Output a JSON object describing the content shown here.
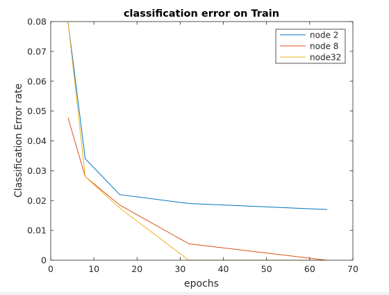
{
  "chart_data": {
    "type": "line",
    "title": "classification error on Train",
    "xlabel": "epochs",
    "ylabel": "Classification Error rate",
    "xlim": [
      0,
      70
    ],
    "ylim": [
      0,
      0.08
    ],
    "x_ticks": [
      "0",
      "10",
      "20",
      "30",
      "40",
      "50",
      "60",
      "70"
    ],
    "y_ticks": [
      "0",
      "0.01",
      "0.02",
      "0.03",
      "0.04",
      "0.05",
      "0.06",
      "0.07",
      "0.08"
    ],
    "grid": false,
    "legend_position": "top-right",
    "series": [
      {
        "name": "node 2",
        "color": "#0072bd",
        "x": [
          4,
          8,
          16,
          32,
          64
        ],
        "y": [
          0.08,
          0.034,
          0.022,
          0.019,
          0.017
        ]
      },
      {
        "name": "node 8",
        "color": "#d95319",
        "x": [
          4,
          8,
          16,
          32,
          64
        ],
        "y": [
          0.0478,
          0.028,
          0.0185,
          0.0055,
          0.0
        ]
      },
      {
        "name": "node32",
        "color": "#edb120",
        "x": [
          4,
          8,
          16,
          32,
          48,
          64
        ],
        "y": [
          0.08,
          0.028,
          0.0175,
          0.0,
          0.0,
          0.0
        ]
      }
    ]
  }
}
